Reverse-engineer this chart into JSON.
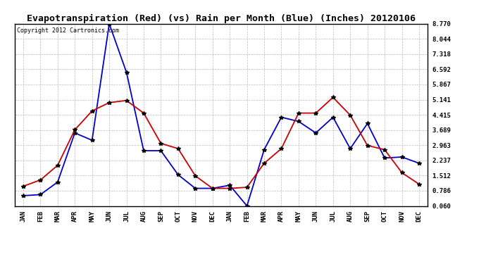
{
  "title": "Evapotranspiration (Red) (vs) Rain per Month (Blue) (Inches) 20120106",
  "copyright": "Copyright 2012 Cartronics.com",
  "months": [
    "JAN",
    "FEB",
    "MAR",
    "APR",
    "MAY",
    "JUN",
    "JUL",
    "AUG",
    "SEP",
    "OCT",
    "NOV",
    "DEC",
    "JAN",
    "FEB",
    "MAR",
    "APR",
    "MAY",
    "JUN",
    "JUL",
    "AUG",
    "SEP",
    "OCT",
    "NOV",
    "DEC"
  ],
  "blue_rain": [
    0.55,
    0.6,
    1.2,
    3.55,
    3.2,
    8.77,
    6.45,
    2.7,
    2.7,
    1.55,
    0.9,
    0.9,
    1.05,
    0.06,
    2.75,
    4.3,
    4.1,
    3.55,
    4.3,
    2.8,
    4.0,
    2.35,
    2.4,
    2.1
  ],
  "red_et": [
    1.0,
    1.3,
    2.0,
    3.7,
    4.6,
    5.0,
    5.1,
    4.5,
    3.05,
    2.8,
    1.5,
    0.9,
    0.9,
    0.95,
    2.1,
    2.8,
    4.5,
    4.5,
    5.25,
    4.4,
    2.95,
    2.75,
    1.65,
    1.1
  ],
  "yticks": [
    0.06,
    0.786,
    1.512,
    2.237,
    2.963,
    3.689,
    4.415,
    5.141,
    5.867,
    6.592,
    7.318,
    8.044,
    8.77
  ],
  "ymin": 0.06,
  "ymax": 8.77,
  "blue_color": "#0000cc",
  "red_color": "#cc0000",
  "bg_color": "#ffffff",
  "grid_color": "#bbbbbb",
  "title_fontsize": 9.5,
  "copyright_fontsize": 6,
  "tick_fontsize": 6.5,
  "marker": "*",
  "marker_size": 4,
  "linewidth": 1.3
}
